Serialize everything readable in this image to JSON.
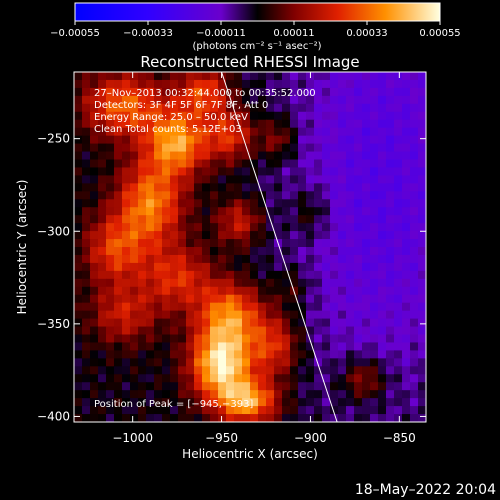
{
  "chart_data": {
    "type": "heatmap",
    "title": "Reconstructed RHESSI Image",
    "xlabel": "Heliocentric X (arcsec)",
    "ylabel": "Heliocentric Y (arcsec)",
    "xlim": [
      -1033,
      -835
    ],
    "ylim": [
      -403,
      -214
    ],
    "x_ticks": [
      -1000,
      -950,
      -900,
      -850
    ],
    "x_tick_labels": [
      "−1000",
      "−950",
      "−900",
      "−850"
    ],
    "y_ticks": [
      -250,
      -300,
      -350,
      -400
    ],
    "y_tick_labels": [
      "−250",
      "−300",
      "−350",
      "−400"
    ],
    "colorbar": {
      "range": [
        -0.00055,
        0.00055
      ],
      "ticks": [
        -0.00055,
        -0.00033,
        -0.00011,
        0.00011,
        0.00033,
        0.00055
      ],
      "tick_labels": [
        "−0.00055",
        "−0.00033",
        "−0.00011",
        "0.00011",
        "0.00033",
        "0.00055"
      ],
      "label": "(photons cm⁻² s⁻¹ asec⁻²)"
    },
    "annotations": {
      "time": "27–Nov–2013 00:32:44.000 to 00:35:52.000",
      "detectors": "Detectors: 3F 4F 5F 6F 7F 8F, Att 0",
      "energy": "Energy Range: 25.0 – 50.0 keV",
      "clean": "Clean    Total counts: 5.12E+03",
      "peak": "Position of Peak = [−945,−393]"
    },
    "limb_line": [
      [
        -950,
        -214
      ],
      [
        -885,
        -403
      ]
    ],
    "peak_position": [
      -945,
      -393
    ],
    "emission_blobs": [
      {
        "x": -1005,
        "y": -232,
        "amp": 0.00032,
        "sx": 16,
        "sy": 12
      },
      {
        "x": -975,
        "y": -252,
        "amp": 0.0004,
        "sx": 12,
        "sy": 12
      },
      {
        "x": -960,
        "y": -225,
        "amp": 0.00028,
        "sx": 10,
        "sy": 9
      },
      {
        "x": -945,
        "y": -248,
        "amp": 0.00026,
        "sx": 10,
        "sy": 10
      },
      {
        "x": -990,
        "y": -285,
        "amp": 0.00036,
        "sx": 13,
        "sy": 16
      },
      {
        "x": -1010,
        "y": -310,
        "amp": 0.00026,
        "sx": 12,
        "sy": 13
      },
      {
        "x": -975,
        "y": -325,
        "amp": 0.00024,
        "sx": 14,
        "sy": 12
      },
      {
        "x": -1005,
        "y": -345,
        "amp": 0.0002,
        "sx": 13,
        "sy": 11
      },
      {
        "x": -940,
        "y": -295,
        "amp": 0.00022,
        "sx": 9,
        "sy": 9
      },
      {
        "x": -945,
        "y": -345,
        "amp": 0.00036,
        "sx": 13,
        "sy": 12
      },
      {
        "x": -950,
        "y": -372,
        "amp": 0.00052,
        "sx": 12,
        "sy": 13
      },
      {
        "x": -920,
        "y": -362,
        "amp": 0.00026,
        "sx": 10,
        "sy": 12
      },
      {
        "x": -935,
        "y": -392,
        "amp": 0.0004,
        "sx": 12,
        "sy": 8
      },
      {
        "x": -918,
        "y": -250,
        "amp": 0.00016,
        "sx": 7,
        "sy": 8
      },
      {
        "x": -900,
        "y": -290,
        "amp": 0.00012,
        "sx": 8,
        "sy": 10
      },
      {
        "x": -910,
        "y": -330,
        "amp": 0.0001,
        "sx": 7,
        "sy": 8
      },
      {
        "x": -870,
        "y": -380,
        "amp": 0.0002,
        "sx": 9,
        "sy": 8
      },
      {
        "x": -860,
        "y": -232,
        "amp": -0.00014,
        "sx": 40,
        "sy": 60
      },
      {
        "x": -860,
        "y": -330,
        "amp": -0.00012,
        "sx": 40,
        "sy": 60
      }
    ]
  },
  "footer": {
    "timestamp": "18–May–2022 20:04"
  }
}
